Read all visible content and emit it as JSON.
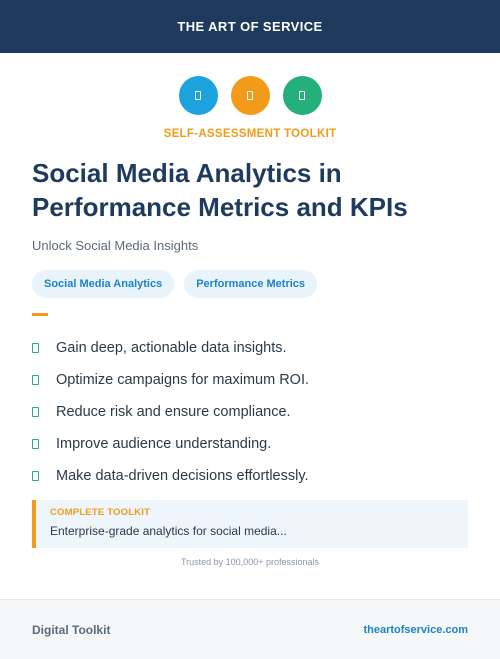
{
  "header": {
    "brand": "THE ART OF SERVICE"
  },
  "icons": [
    {
      "name": "document-icon",
      "color": "#1ca3de"
    },
    {
      "name": "document-icon",
      "color": "#f29b1a"
    },
    {
      "name": "document-icon",
      "color": "#23b07a"
    }
  ],
  "kicker": {
    "text": "SELF-ASSESSMENT TOOLKIT",
    "color": "#f29b1a"
  },
  "title": "Social Media Analytics in Performance Metrics and KPIs",
  "subtitle": "Unlock Social Media Insights",
  "tags": [
    "Social Media Analytics",
    "Performance Metrics"
  ],
  "tag_color": "#1c84c6",
  "accent_color": "#f29b1a",
  "features": [
    "Gain deep, actionable data insights.",
    "Optimize campaigns for maximum ROI.",
    "Reduce risk and ensure compliance.",
    "Improve audience understanding.",
    "Make data-driven decisions effortlessly."
  ],
  "callout": {
    "label": "COMPLETE TOOLKIT",
    "text": "Enterprise-grade analytics for social media..."
  },
  "trusted": "Trusted by 100,000+ professionals",
  "footer": {
    "left": "Digital Toolkit",
    "right": "theartofservice.com",
    "link_color": "#1c84c6"
  }
}
